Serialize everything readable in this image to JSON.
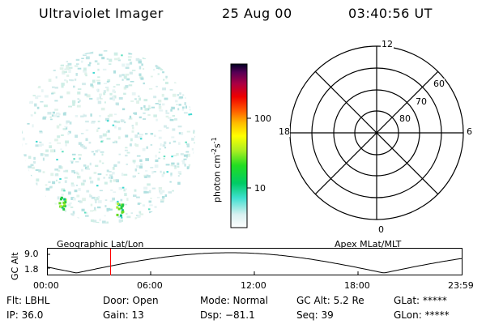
{
  "header": {
    "title": "Ultraviolet Imager",
    "date": "25 Aug 00",
    "time": "03:40:56 UT"
  },
  "colorbar": {
    "unit_label": "photon cm",
    "unit_exp1": "-2",
    "unit_mid": "s",
    "unit_exp2": "-1",
    "ticks": [
      "100",
      "10"
    ]
  },
  "polar_plot": {
    "labels": {
      "top": "12",
      "left": "18",
      "right": "6",
      "bottom": "0"
    },
    "latitude_labels": [
      "60",
      "70",
      "80"
    ]
  },
  "timeline": {
    "left_title": "Geographic Lat/Lon",
    "right_title": "Apex MLat/MLT",
    "y_axis_label": "GC Alt",
    "y_ticks": [
      "9.0",
      "1.8"
    ],
    "x_ticks": [
      "00:00",
      "06:00",
      "12:00",
      "18:00",
      "23:59"
    ],
    "current_time_hours": 3.68,
    "marker_color": "#ff0000"
  },
  "status": {
    "filter": "Flt: LBHL",
    "ip": "IP: 36.0",
    "door": "Door: Open",
    "gain": "Gain: 13",
    "mode": "Mode: Normal",
    "dsp": "Dsp:  −81.1",
    "gc_alt": "GC Alt: 5.2 Re",
    "seq": "Seq: 39",
    "glat": "GLat: *****",
    "glon": "GLon: *****"
  }
}
